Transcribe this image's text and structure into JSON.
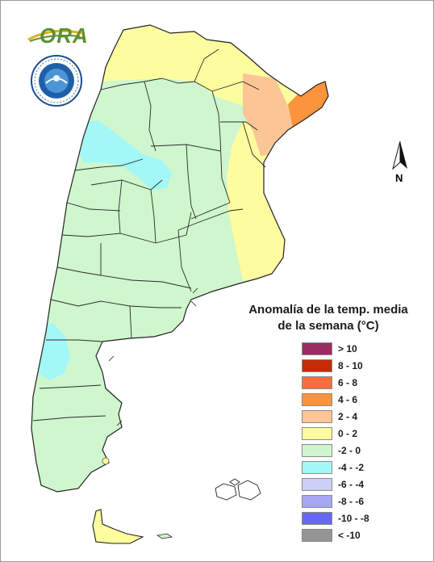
{
  "logo": {
    "text": "ORA",
    "name": "ora-logo"
  },
  "seal": {
    "name": "smn-seal",
    "lettering": "SERVICIO METEOROLÓGICO NACIONAL · ARGENTINA"
  },
  "north_arrow": {
    "letter": "N"
  },
  "legend": {
    "title_line1": "Anomalía de la temp. media",
    "title_line2": "de la semana (°C)",
    "items": [
      {
        "label": "> 10",
        "color": "#9b2c61"
      },
      {
        "label": "8 - 10",
        "color": "#c52b05"
      },
      {
        "label": "6 - 8",
        "color": "#fb6e3f"
      },
      {
        "label": "4 - 6",
        "color": "#fb943a"
      },
      {
        "label": "2 - 4",
        "color": "#fbc596"
      },
      {
        "label": "0 - 2",
        "color": "#fdfc9f"
      },
      {
        "label": "-2 - 0",
        "color": "#cff6cd"
      },
      {
        "label": "-4 - -2",
        "color": "#a3f7f7"
      },
      {
        "label": "-6 - -4",
        "color": "#cdd0f4"
      },
      {
        "label": "-8 - -6",
        "color": "#a6a6f5"
      },
      {
        "label": "-10 - -8",
        "color": "#6767f4"
      },
      {
        "label": "< -10",
        "color": "#959595"
      }
    ]
  },
  "map": {
    "region": "Argentina",
    "zones": [
      {
        "name": "north-band",
        "category": "0 - 2"
      },
      {
        "name": "misiones-core",
        "category": "4 - 6"
      },
      {
        "name": "corrientes-mesopotamia",
        "category": "2 - 4"
      },
      {
        "name": "east-coast-strip",
        "category": "0 - 2"
      },
      {
        "name": "andes-cuyo",
        "category": "-4 - -2"
      },
      {
        "name": "patagonia-west",
        "category": "-4 - -2"
      },
      {
        "name": "bulk",
        "category": "-2 - 0"
      },
      {
        "name": "tierra-del-fuego",
        "category": "0 - 2"
      }
    ]
  }
}
